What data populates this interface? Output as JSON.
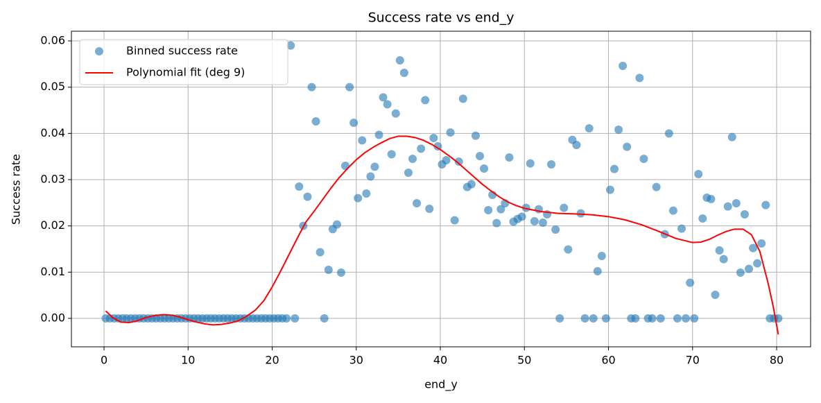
{
  "chart_data": {
    "type": "scatter",
    "title": "Success rate vs end_y",
    "x_label": "end_y",
    "y_label": "Success rate",
    "xlim": [
      -3.88,
      84.04
    ],
    "ylim": [
      -0.00615,
      0.0621
    ],
    "xticks": [
      0,
      10,
      20,
      30,
      40,
      50,
      60,
      70,
      80
    ],
    "yticks": [
      {
        "value": 0,
        "label": "0.00"
      },
      0.01,
      0.02,
      0.03,
      0.04,
      0.05,
      0.06
    ],
    "grid": true,
    "legend": "upper left",
    "series": [
      {
        "name": "Binned success rate",
        "type": "scatter",
        "color": "#1f77b4",
        "x": [
          0.2,
          0.7,
          1.2,
          1.7,
          2.2,
          2.7,
          3.2,
          3.7,
          4.2,
          4.7,
          5.2,
          5.7,
          6.2,
          6.7,
          7.2,
          7.7,
          8.2,
          8.7,
          9.2,
          9.7,
          10.2,
          10.7,
          11.2,
          11.7,
          12.2,
          12.7,
          13.2,
          13.7,
          14.2,
          14.7,
          15.2,
          15.7,
          16.2,
          16.7,
          17.2,
          17.7,
          18.2,
          18.7,
          19.2,
          19.7,
          20.2,
          20.7,
          21.2,
          21.7,
          22.2,
          22.7,
          23.2,
          23.7,
          24.2,
          24.7,
          25.2,
          25.7,
          26.2,
          26.7,
          27.2,
          27.7,
          28.2,
          28.7,
          29.2,
          29.7,
          30.2,
          30.7,
          31.2,
          31.7,
          32.2,
          32.7,
          33.2,
          33.7,
          34.2,
          34.7,
          35.2,
          35.7,
          36.2,
          36.7,
          37.2,
          37.7,
          38.2,
          38.7,
          39.2,
          39.7,
          40.2,
          40.7,
          41.2,
          41.7,
          42.2,
          42.7,
          43.2,
          43.7,
          44.2,
          44.7,
          45.2,
          45.7,
          46.2,
          46.7,
          47.2,
          47.7,
          48.2,
          48.7,
          49.2,
          49.7,
          50.2,
          50.7,
          51.2,
          51.7,
          52.2,
          52.7,
          53.2,
          53.7,
          54.2,
          54.7,
          55.2,
          55.7,
          56.2,
          56.7,
          57.2,
          57.7,
          58.2,
          58.7,
          59.2,
          59.7,
          60.2,
          60.7,
          61.2,
          61.7,
          62.2,
          62.7,
          63.2,
          63.7,
          64.2,
          64.7,
          65.2,
          65.7,
          66.2,
          66.7,
          67.2,
          67.7,
          68.2,
          68.7,
          69.2,
          69.7,
          70.2,
          70.7,
          71.2,
          71.7,
          72.2,
          72.7,
          73.2,
          73.7,
          74.2,
          74.7,
          75.2,
          75.7,
          76.2,
          76.7,
          77.2,
          77.7,
          78.2,
          78.7,
          79.2,
          79.7,
          80.2
        ],
        "values": [
          0,
          0,
          0,
          0,
          0,
          0,
          0,
          0,
          0,
          0,
          0,
          0,
          0,
          0,
          0,
          0,
          0,
          0,
          0,
          0,
          0,
          0,
          0,
          0,
          0,
          0,
          0,
          0,
          0,
          0,
          0,
          0,
          0,
          0,
          0,
          0,
          0,
          0,
          0,
          0,
          0,
          0,
          0,
          0,
          0.059,
          0,
          0.0285,
          0.02,
          0.0263,
          0.05,
          0.0426,
          0.0143,
          0,
          0.0105,
          0.0193,
          0.0203,
          0.0099,
          0.033,
          0.05,
          0.0423,
          0.026,
          0.0385,
          0.027,
          0.0307,
          0.0328,
          0.0397,
          0.0478,
          0.0463,
          0.0355,
          0.0443,
          0.0558,
          0.0531,
          0.0315,
          0.0345,
          0.0249,
          0.0367,
          0.0472,
          0.0237,
          0.039,
          0.0372,
          0.0333,
          0.0342,
          0.0402,
          0.0212,
          0.0339,
          0.0475,
          0.0284,
          0.029,
          0.0395,
          0.0351,
          0.0324,
          0.0234,
          0.0267,
          0.0206,
          0.0236,
          0.0249,
          0.0348,
          0.0209,
          0.0215,
          0.022,
          0.0239,
          0.0335,
          0.021,
          0.0236,
          0.0207,
          0.0225,
          0.0333,
          0.0192,
          0,
          0.0239,
          0.0149,
          0.0386,
          0.0375,
          0.0227,
          0,
          0.0411,
          0,
          0.0102,
          0.0135,
          0,
          0.0278,
          0.0323,
          0.0408,
          0.0546,
          0.0371,
          0,
          0,
          0.052,
          0.0345,
          0,
          0,
          0.0284,
          0,
          0.0182,
          0.04,
          0.0233,
          0,
          0.0194,
          0,
          0.0077,
          0,
          0.0312,
          0.0216,
          0.0261,
          0.0258,
          0.0051,
          0.0147,
          0.0128,
          0.0242,
          0.0392,
          0.0249,
          0.0099,
          0.0225,
          0.0107,
          0.0152,
          0.0119,
          0.0162,
          0.0245,
          0,
          0,
          0
        ]
      },
      {
        "name": "Polynomial fit (deg 9)",
        "type": "line",
        "color": "#ff0000",
        "x": [
          0.2,
          1,
          2,
          3,
          4,
          5,
          6,
          7,
          8,
          9,
          10,
          11,
          12,
          13,
          14,
          15,
          16,
          17,
          18,
          19,
          20,
          21,
          22,
          23,
          24,
          25,
          26,
          27,
          28,
          29,
          30,
          31,
          32,
          33,
          34,
          35,
          36,
          37,
          38,
          39,
          40,
          41,
          42,
          43,
          44,
          45,
          46,
          47,
          48,
          49,
          50,
          52,
          54,
          56,
          58,
          60,
          62,
          64,
          66,
          68,
          70,
          71,
          72,
          73,
          74,
          75,
          76,
          77,
          78,
          79,
          79.6,
          80.2
        ],
        "values": [
          0.0016,
          0.0002,
          -0.0008,
          -0.0009,
          -0.0005,
          0.0002,
          0.0006,
          0.0008,
          0.0007,
          0.0003,
          -0.0003,
          -0.0008,
          -0.0012,
          -0.0014,
          -0.0013,
          -0.001,
          -0.0005,
          0.0005,
          0.0018,
          0.0038,
          0.0068,
          0.0102,
          0.0138,
          0.0174,
          0.0208,
          0.0232,
          0.0257,
          0.0282,
          0.0305,
          0.0325,
          0.0343,
          0.0358,
          0.037,
          0.038,
          0.0389,
          0.0394,
          0.0394,
          0.0391,
          0.0385,
          0.0376,
          0.0365,
          0.0352,
          0.0338,
          0.0322,
          0.0306,
          0.029,
          0.0276,
          0.0263,
          0.0252,
          0.0244,
          0.0238,
          0.0231,
          0.0227,
          0.0226,
          0.0224,
          0.022,
          0.0213,
          0.0202,
          0.0188,
          0.0173,
          0.0164,
          0.0165,
          0.0171,
          0.018,
          0.0188,
          0.0193,
          0.0193,
          0.0181,
          0.0145,
          0.0075,
          0.0025,
          -0.0035
        ]
      }
    ]
  }
}
